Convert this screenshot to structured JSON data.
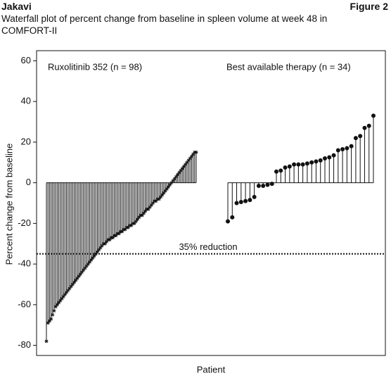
{
  "chart_data": {
    "type": "waterfall",
    "header": "Jakavi",
    "figure_label": "Figure 2",
    "title": "Waterfall plot of percent change from baseline in spleen volume at week 48 in COMFORT-II",
    "y_label": "Percent change from baseline",
    "x_label": "Patient",
    "ylim": [
      -85,
      65
    ],
    "yticks": [
      -80,
      -60,
      -40,
      -20,
      0,
      20,
      40,
      60
    ],
    "reference_line": {
      "value": -35,
      "label": "35% reduction"
    },
    "series": [
      {
        "name": "Ruxolitinib 352 (n = 98)",
        "color": "#111111",
        "marker": "star",
        "values": [
          -78,
          -69,
          -68,
          -67,
          -65,
          -63,
          -61,
          -60,
          -59,
          -58,
          -57,
          -56,
          -55,
          -54,
          -53,
          -52,
          -51,
          -50,
          -49,
          -48,
          -47,
          -46,
          -45,
          -44,
          -43,
          -42,
          -41,
          -40,
          -39,
          -38,
          -37,
          -36,
          -35,
          -34,
          -33,
          -32,
          -31,
          -30,
          -30,
          -29,
          -28,
          -28,
          -27,
          -27,
          -26,
          -26,
          -25,
          -25,
          -24,
          -24,
          -23,
          -23,
          -22,
          -22,
          -21,
          -21,
          -20,
          -20,
          -19,
          -18,
          -17,
          -16,
          -16,
          -15,
          -14,
          -13,
          -13,
          -12,
          -11,
          -10,
          -9,
          -9,
          -8,
          -8,
          -7,
          -6,
          -5,
          -4,
          -3,
          -2,
          -1,
          0,
          1,
          2,
          3,
          4,
          5,
          6,
          7,
          8,
          9,
          10,
          11,
          12,
          13,
          14,
          15,
          15
        ]
      },
      {
        "name": "Best available therapy (n = 34)",
        "color": "#111111",
        "marker": "dot",
        "values": [
          -19,
          -17,
          -10,
          -9.5,
          -9,
          -8.5,
          -7,
          -1.5,
          -1.5,
          -1,
          -0.5,
          5.5,
          6,
          7.5,
          8,
          9,
          9,
          9,
          9.5,
          10,
          10.5,
          11,
          12,
          12.5,
          13.5,
          16,
          16.5,
          17,
          18,
          22,
          23,
          27,
          28,
          33
        ]
      }
    ]
  }
}
